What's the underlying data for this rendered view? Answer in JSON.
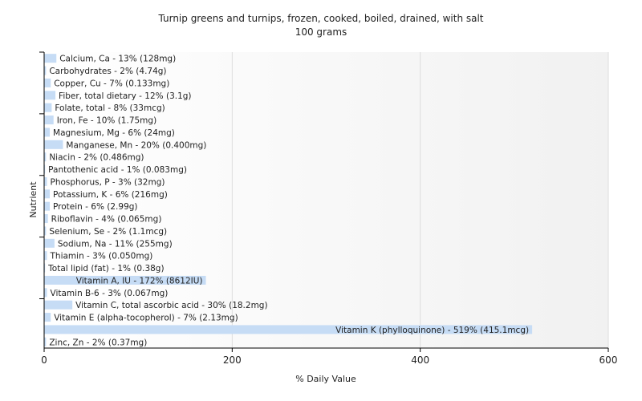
{
  "chart_data": {
    "type": "bar",
    "orientation": "horizontal",
    "title": "Turnip greens and turnips, frozen, cooked, boiled, drained, with salt",
    "subtitle": "100 grams",
    "xlabel": "% Daily Value",
    "ylabel": "Nutrient",
    "xlim": [
      0,
      600
    ],
    "xticks": [
      0,
      200,
      400,
      600
    ],
    "grid": true,
    "bar_color": "#c6dcf5",
    "categories": [
      "Calcium, Ca",
      "Carbohydrates",
      "Copper, Cu",
      "Fiber, total dietary",
      "Folate, total",
      "Iron, Fe",
      "Magnesium, Mg",
      "Manganese, Mn",
      "Niacin",
      "Pantothenic acid",
      "Phosphorus, P",
      "Potassium, K",
      "Protein",
      "Riboflavin",
      "Selenium, Se",
      "Sodium, Na",
      "Thiamin",
      "Total lipid (fat)",
      "Vitamin A, IU",
      "Vitamin B-6",
      "Vitamin C, total ascorbic acid",
      "Vitamin E (alpha-tocopherol)",
      "Vitamin K (phylloquinone)",
      "Zinc, Zn"
    ],
    "values": [
      13,
      2,
      7,
      12,
      8,
      10,
      6,
      20,
      2,
      1,
      3,
      6,
      6,
      4,
      2,
      11,
      3,
      1,
      172,
      3,
      30,
      7,
      519,
      2
    ],
    "labels": [
      "Calcium, Ca - 13% (128mg)",
      "Carbohydrates - 2% (4.74g)",
      "Copper, Cu - 7% (0.133mg)",
      "Fiber, total dietary - 12% (3.1g)",
      "Folate, total - 8% (33mcg)",
      "Iron, Fe - 10% (1.75mg)",
      "Magnesium, Mg - 6% (24mg)",
      "Manganese, Mn - 20% (0.400mg)",
      "Niacin - 2% (0.486mg)",
      "Pantothenic acid - 1% (0.083mg)",
      "Phosphorus, P - 3% (32mg)",
      "Potassium, K - 6% (216mg)",
      "Protein - 6% (2.99g)",
      "Riboflavin - 4% (0.065mg)",
      "Selenium, Se - 2% (1.1mcg)",
      "Sodium, Na - 11% (255mg)",
      "Thiamin - 3% (0.050mg)",
      "Total lipid (fat) - 1% (0.38g)",
      "Vitamin A, IU - 172% (8612IU)",
      "Vitamin B-6 - 3% (0.067mg)",
      "Vitamin C, total ascorbic acid - 30% (18.2mg)",
      "Vitamin E (alpha-tocopherol) - 7% (2.13mg)",
      "Vitamin K (phylloquinone) - 519% (415.1mcg)",
      "Zinc, Zn - 2% (0.37mg)"
    ]
  }
}
